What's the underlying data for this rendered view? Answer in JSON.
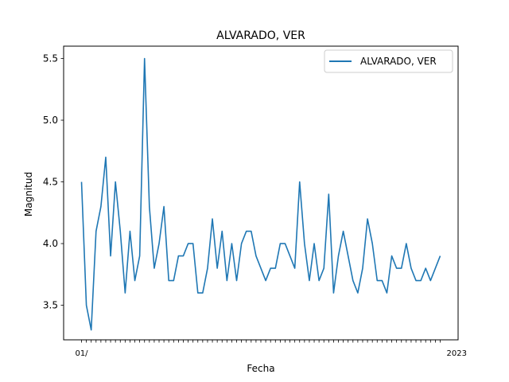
{
  "chart_data": {
    "type": "line",
    "title": "ALVARADO, VER",
    "xlabel": "Fecha",
    "ylabel": "Magnitud",
    "ylim": [
      3.22,
      5.6
    ],
    "yticks": [
      "3.5",
      "4.0",
      "4.5",
      "5.0",
      "5.5"
    ],
    "ytick_values": [
      3.5,
      4.0,
      4.5,
      5.0,
      5.5
    ],
    "xtick_labels_visible": [
      "01/",
      "2023"
    ],
    "grid": false,
    "legend": {
      "position": "top-right",
      "entries": [
        "ALVARADO, VER"
      ]
    },
    "series": [
      {
        "name": "ALVARADO, VER",
        "color": "#1f77b4",
        "values": [
          4.5,
          3.5,
          3.3,
          4.1,
          4.3,
          4.7,
          3.9,
          4.5,
          4.1,
          3.6,
          4.1,
          3.7,
          3.9,
          5.5,
          4.3,
          3.8,
          4.0,
          4.3,
          3.7,
          3.7,
          3.9,
          3.9,
          4.0,
          4.0,
          3.6,
          3.6,
          3.8,
          4.2,
          3.8,
          4.1,
          3.7,
          4.0,
          3.7,
          4.0,
          4.1,
          4.1,
          3.9,
          3.8,
          3.7,
          3.8,
          3.8,
          4.0,
          4.0,
          3.9,
          3.8,
          4.5,
          4.0,
          3.7,
          4.0,
          3.7,
          3.8,
          4.4,
          3.6,
          3.9,
          4.1,
          3.9,
          3.7,
          3.6,
          3.8,
          4.2,
          4.0,
          3.7,
          3.7,
          3.6,
          3.9,
          3.8,
          3.8,
          4.0,
          3.8,
          3.7,
          3.7,
          3.8,
          3.7,
          3.8,
          3.9
        ]
      }
    ]
  }
}
